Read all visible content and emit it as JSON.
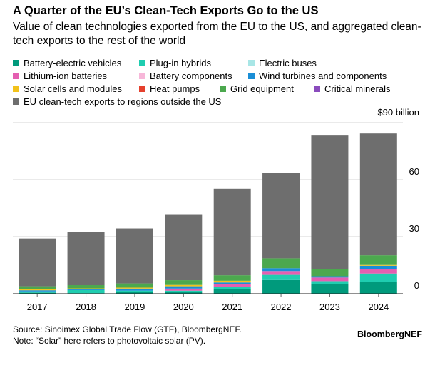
{
  "title": "A Quarter of the EU’s Clean-Tech Exports Go to the US",
  "subtitle": "Value of clean technologies exported from the EU to the US, and aggregated clean-tech exports to the rest of the world",
  "source": "Source: Sinoimex Global Trade Flow (GTF), BloombergNEF.",
  "note": "Note: “Solar” here refers to photovoltaic solar (PV).",
  "brand": "BloombergNEF",
  "chart_data": {
    "type": "bar",
    "stacked": true,
    "categories": [
      "2017",
      "2018",
      "2019",
      "2020",
      "2021",
      "2022",
      "2023",
      "2024"
    ],
    "ylim": [
      0,
      90
    ],
    "yticks": [
      {
        "value": 0,
        "label": "0"
      },
      {
        "value": 30,
        "label": "30"
      },
      {
        "value": 60,
        "label": "60"
      },
      {
        "value": 90,
        "label": "$90 billion"
      }
    ],
    "grid": true,
    "legend_position": "top",
    "series": [
      {
        "name": "Battery-electric vehicles",
        "color": "#009a7c",
        "values": [
          0.5,
          0.3,
          1.0,
          1.0,
          2.6,
          7.2,
          5.0,
          6.2
        ]
      },
      {
        "name": "Plug-in hybrids",
        "color": "#1fcdb0",
        "values": [
          0.7,
          1.6,
          0.6,
          0.6,
          1.1,
          2.7,
          1.6,
          4.4
        ]
      },
      {
        "name": "Electric buses",
        "color": "#a8e6e6",
        "values": [
          0,
          0,
          0,
          0,
          0,
          0,
          0,
          0
        ]
      },
      {
        "name": "Lithium-ion batteries",
        "color": "#e45fb1",
        "values": [
          0,
          0,
          0,
          1.1,
          1.2,
          2.0,
          1.9,
          2.2
        ]
      },
      {
        "name": "Battery components",
        "color": "#f7b7d9",
        "values": [
          0,
          0,
          0,
          0,
          0,
          0,
          0,
          0
        ]
      },
      {
        "name": "Wind turbines and components",
        "color": "#1a8ed6",
        "values": [
          0.6,
          0.4,
          1.1,
          1.2,
          1.0,
          1.5,
          0.7,
          1.9
        ]
      },
      {
        "name": "Solar cells and modules",
        "color": "#f2c21b",
        "values": [
          0.5,
          0.5,
          0.5,
          0.7,
          0.9,
          0,
          0,
          0.4
        ]
      },
      {
        "name": "Heat pumps",
        "color": "#e5402d",
        "values": [
          0,
          0,
          0,
          0,
          0,
          0,
          0,
          0
        ]
      },
      {
        "name": "Grid equipment",
        "color": "#4ca84e",
        "values": [
          1.6,
          1.7,
          2.2,
          2.5,
          2.9,
          5.2,
          3.6,
          5.1
        ]
      },
      {
        "name": "Critical minerals",
        "color": "#8a4cbd",
        "values": [
          0,
          0,
          0,
          0,
          0,
          0,
          0,
          0
        ]
      },
      {
        "name": "EU clean-tech exports to regions outside the US",
        "color": "#6e6e6e",
        "values": [
          25.1,
          28.0,
          28.9,
          34.7,
          45.5,
          44.8,
          70.4,
          64.1
        ]
      }
    ]
  }
}
